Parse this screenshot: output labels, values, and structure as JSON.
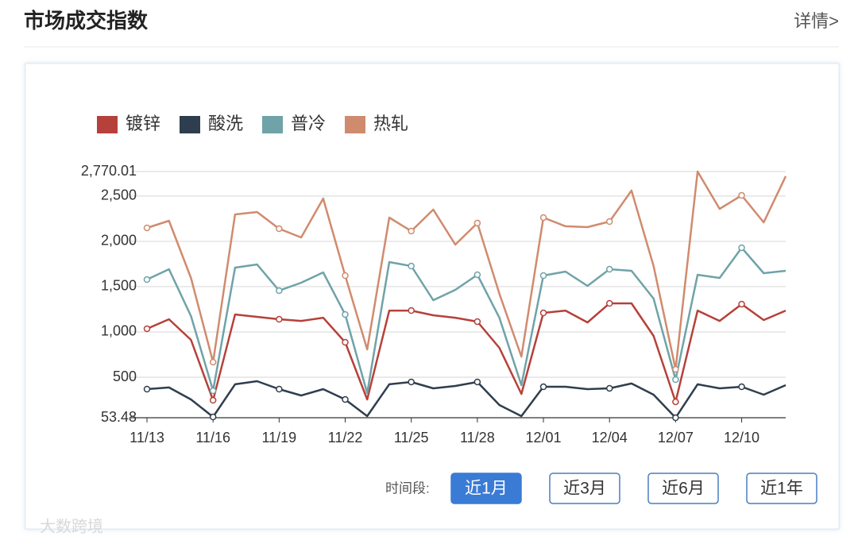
{
  "header": {
    "title": "市场成交指数",
    "link": "详情>"
  },
  "chart_data": {
    "type": "line",
    "categories": [
      "11/13",
      null,
      null,
      "11/16",
      null,
      null,
      "11/19",
      null,
      null,
      "11/22",
      null,
      null,
      "11/25",
      null,
      null,
      "11/28",
      null,
      null,
      "12/01",
      null,
      null,
      "12/04",
      null,
      null,
      "12/07",
      null,
      null,
      "12/10",
      null,
      null
    ],
    "series": [
      {
        "name": "镀锌",
        "color": "#b5413a",
        "values": [
          1035,
          1140,
          912,
          246,
          1193,
          1166,
          1140,
          1122,
          1157,
          886,
          255,
          1236,
          1236,
          1184,
          1157,
          1114,
          825,
          316,
          1210,
          1236,
          1105,
          1315,
          1315,
          956,
          229,
          1236,
          1122,
          1307,
          1131,
          1236
        ]
      },
      {
        "name": "酸洗",
        "color": "#2f3e4e",
        "values": [
          369,
          387,
          255,
          62,
          422,
          457,
          369,
          299,
          369,
          255,
          71,
          422,
          448,
          378,
          404,
          448,
          194,
          71,
          395,
          395,
          369,
          378,
          431,
          308,
          53.48,
          422,
          378,
          395,
          308,
          413
        ]
      },
      {
        "name": "普冷",
        "color": "#6fa3a8",
        "values": [
          1578,
          1692,
          1175,
          351,
          1710,
          1745,
          1456,
          1543,
          1657,
          1193,
          325,
          1771,
          1727,
          1350,
          1464,
          1631,
          1157,
          413,
          1622,
          1666,
          1508,
          1692,
          1675,
          1368,
          474,
          1631,
          1596,
          1929,
          1648,
          1675
        ]
      },
      {
        "name": "热轧",
        "color": "#d08b6e",
        "values": [
          2148,
          2227,
          1596,
          667,
          2297,
          2323,
          2139,
          2043,
          2472,
          1622,
          807,
          2262,
          2113,
          2350,
          1964,
          2201,
          1421,
          728,
          2262,
          2166,
          2157,
          2218,
          2560,
          1727,
          588,
          2770.01,
          2358,
          2507,
          2209,
          2718
        ]
      }
    ],
    "ylim": [
      53.48,
      2770.01
    ],
    "yticks": [
      53.48,
      500,
      {
        "value": 1000,
        "label": "1,000"
      },
      {
        "value": 1500,
        "label": "1,500"
      },
      {
        "value": 2000,
        "label": "2,000"
      },
      {
        "value": 2500,
        "label": "2,500"
      },
      {
        "value": 2770.01,
        "label": "2,770.01"
      }
    ],
    "grid": true,
    "legend": "top-left"
  },
  "time_filter": {
    "label": "时间段:",
    "options": [
      "近1月",
      "近3月",
      "近6月",
      "近1年"
    ],
    "active": 0
  },
  "watermark": "大数跨境"
}
